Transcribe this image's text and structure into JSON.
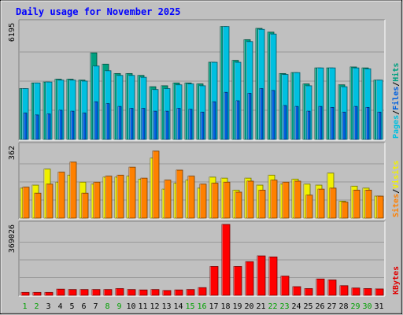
{
  "chart_data": {
    "type": "bar",
    "title": "Daily usage for November 2025",
    "categories": [
      "1",
      "2",
      "3",
      "4",
      "5",
      "6",
      "7",
      "8",
      "9",
      "10",
      "11",
      "12",
      "13",
      "14",
      "15",
      "16",
      "17",
      "18",
      "19",
      "20",
      "21",
      "22",
      "23",
      "24",
      "25",
      "26",
      "27",
      "28",
      "29",
      "30",
      "31"
    ],
    "weekend_days": [
      "1",
      "2",
      "8",
      "9",
      "15",
      "16",
      "22",
      "23",
      "29",
      "30"
    ],
    "panels": [
      {
        "id": "hits-files-pages",
        "max_label": "6195",
        "ylim": [
          0,
          6195
        ],
        "legend": [
          {
            "text": "Pages",
            "color": "#00c0e0"
          },
          {
            "text": "/",
            "color": "#000000"
          },
          {
            "text": "Files",
            "color": "#0060e0"
          },
          {
            "text": "/",
            "color": "#000000"
          },
          {
            "text": "Hits",
            "color": "#00a080"
          }
        ],
        "series": [
          {
            "name": "Hits",
            "color": "#00a080",
            "values": [
              2700,
              3000,
              3050,
              3200,
              3200,
              3150,
              4600,
              4000,
              3500,
              3500,
              3400,
              2800,
              2850,
              3000,
              3000,
              2950,
              4100,
              6000,
              4200,
              5300,
              5900,
              5700,
              3500,
              3550,
              2950,
              3800,
              3800,
              2900,
              3850,
              3800,
              3150
            ]
          },
          {
            "name": "Pages",
            "color": "#00c0e0",
            "values": [
              2700,
              3000,
              3050,
              3150,
              3150,
              3100,
              3900,
              3650,
              3400,
              3400,
              3300,
              2650,
              2700,
              2900,
              2950,
              2850,
              4100,
              6000,
              4100,
              5200,
              5850,
              5600,
              3450,
              3550,
              2850,
              3800,
              3800,
              2800,
              3800,
              3750,
              3150
            ]
          },
          {
            "name": "Files",
            "color": "#0060e0",
            "values": [
              1400,
              1300,
              1350,
              1550,
              1500,
              1400,
              2000,
              1900,
              1750,
              1650,
              1650,
              1500,
              1500,
              1650,
              1600,
              1450,
              2000,
              2500,
              2050,
              2450,
              2700,
              2600,
              1800,
              1750,
              1500,
              1750,
              1700,
              1450,
              1750,
              1700,
              1450
            ]
          }
        ]
      },
      {
        "id": "visits-sites",
        "max_label": "362",
        "ylim": [
          0,
          362
        ],
        "legend": [
          {
            "text": "Sites",
            "color": "#ff8000"
          },
          {
            "text": "/",
            "color": "#000000"
          },
          {
            "text": "Visits",
            "color": "#f0f000"
          }
        ],
        "series": [
          {
            "name": "Visits",
            "color": "#f0f000",
            "values": [
              150,
              165,
              245,
              180,
              215,
              180,
              170,
              205,
              205,
              210,
              195,
              300,
              145,
              175,
              190,
              150,
              205,
              200,
              140,
              200,
              165,
              215,
              170,
              195,
              170,
              165,
              225,
              85,
              160,
              150,
              110
            ]
          },
          {
            "name": "Sites",
            "color": "#ff8000",
            "values": [
              155,
              125,
              170,
              230,
              280,
              125,
              180,
              210,
              215,
              255,
              200,
              335,
              190,
              240,
              210,
              170,
              175,
              180,
              130,
              185,
              140,
              190,
              180,
              185,
              115,
              145,
              150,
              80,
              140,
              140,
              110
            ]
          }
        ]
      },
      {
        "id": "kbytes",
        "max_label": "369026",
        "ylim": [
          0,
          369026
        ],
        "legend": [
          {
            "text": "KBytes",
            "color": "#e00000"
          }
        ],
        "series": [
          {
            "name": "KBytes",
            "color": "#ff0000",
            "values": [
              15000,
              15000,
              15000,
              32000,
              30000,
              30000,
              30000,
              30000,
              35000,
              30000,
              28000,
              30000,
              25000,
              28000,
              30000,
              40000,
              150000,
              369026,
              150000,
              175000,
              205000,
              200000,
              100000,
              45000,
              35000,
              85000,
              80000,
              50000,
              38000,
              35000,
              33000
            ]
          }
        ]
      }
    ]
  }
}
